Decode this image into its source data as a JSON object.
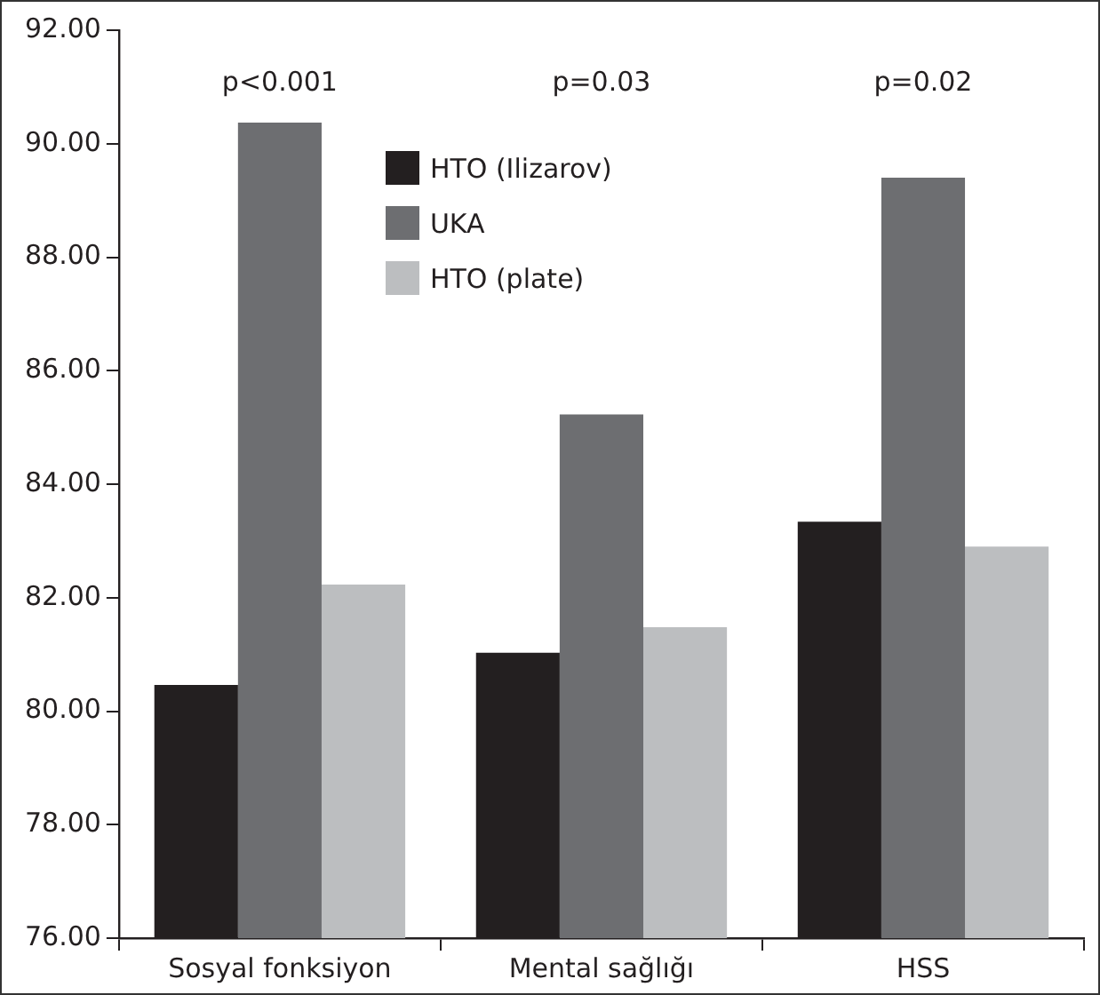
{
  "chart_data": {
    "type": "bar",
    "categories": [
      "Sosyal fonksiyon",
      "Mental sağlığı",
      "HSS"
    ],
    "series": [
      {
        "name": "HTO (Ilizarov)",
        "color": "#231f20",
        "values": [
          80.46,
          81.03,
          83.34
        ]
      },
      {
        "name": "UKA",
        "color": "#6d6e71",
        "values": [
          90.37,
          85.23,
          89.4
        ]
      },
      {
        "name": "HTO (plate)",
        "color": "#bcbec0",
        "values": [
          82.23,
          81.48,
          82.9
        ]
      }
    ],
    "ylim": [
      76,
      92
    ],
    "yticks": [
      {
        "value": 76,
        "label": "76.00"
      },
      {
        "value": 78,
        "label": "78.00"
      },
      {
        "value": 80,
        "label": "80.00"
      },
      {
        "value": 82,
        "label": "82.00"
      },
      {
        "value": 84,
        "label": "84.00"
      },
      {
        "value": 86,
        "label": "86.00"
      },
      {
        "value": 88,
        "label": "88.00"
      },
      {
        "value": 90,
        "label": "90.00"
      },
      {
        "value": 92,
        "label": "92.00"
      }
    ],
    "annotations": [
      "p<0.001",
      "p=0.03",
      "p=0.02"
    ],
    "grid": false,
    "legend": "top"
  }
}
